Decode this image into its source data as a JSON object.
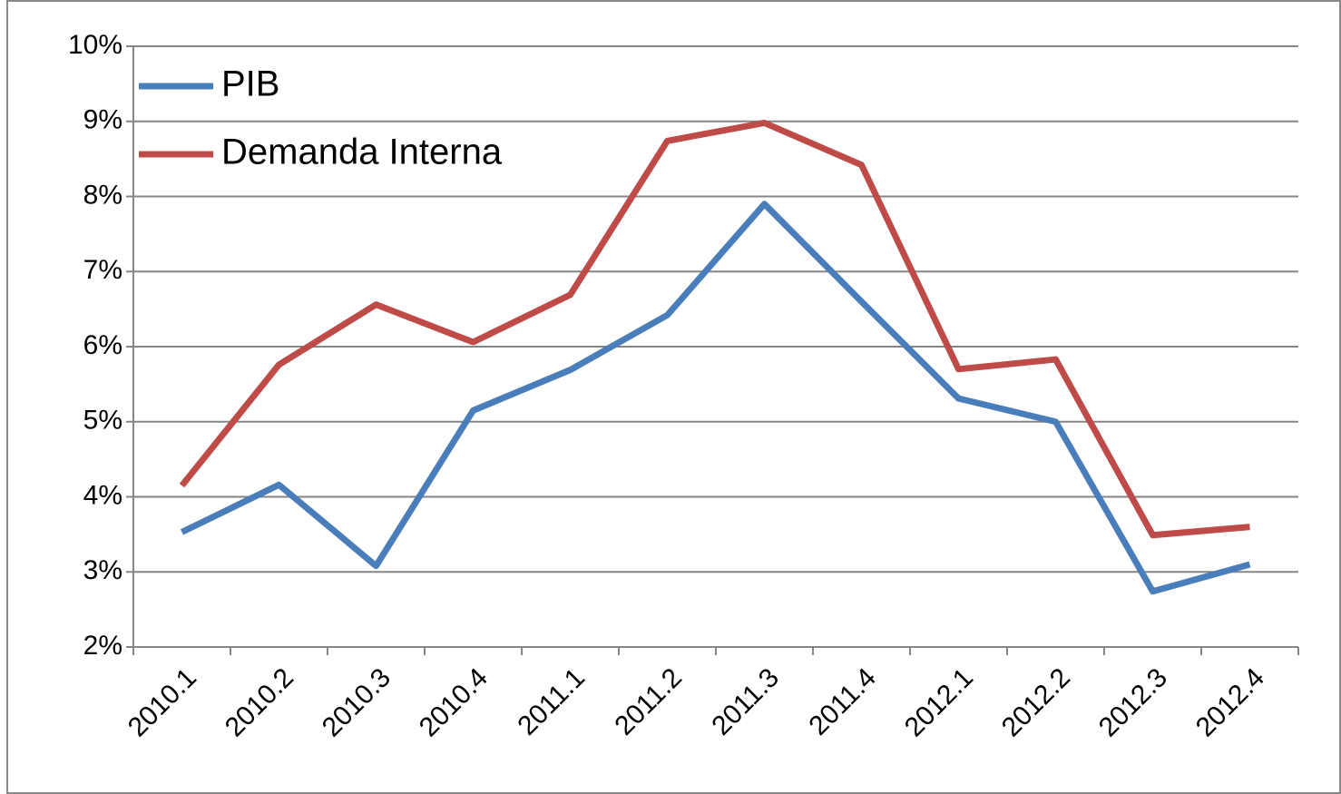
{
  "chart_data": {
    "type": "line",
    "categories": [
      "2010.1",
      "2010.2",
      "2010.3",
      "2010.4",
      "2011.1",
      "2011.2",
      "2011.3",
      "2011.4",
      "2012.1",
      "2012.2",
      "2012.3",
      "2012.4"
    ],
    "series": [
      {
        "name": "PIB",
        "color": "#4a7ebb",
        "values": [
          3.53,
          4.16,
          3.08,
          5.15,
          5.69,
          6.42,
          7.9,
          6.6,
          5.31,
          5.0,
          2.74,
          3.1
        ]
      },
      {
        "name": "Demanda Interna",
        "color": "#be4b48",
        "values": [
          4.15,
          5.76,
          6.56,
          6.06,
          6.69,
          8.74,
          8.98,
          8.42,
          5.7,
          5.83,
          3.49,
          3.6
        ]
      }
    ],
    "ylim": [
      2,
      10
    ],
    "yticks": [
      {
        "value": 2,
        "label": "2%"
      },
      {
        "value": 3,
        "label": "3%"
      },
      {
        "value": 4,
        "label": "4%"
      },
      {
        "value": 5,
        "label": "5%"
      },
      {
        "value": 6,
        "label": "6%"
      },
      {
        "value": 7,
        "label": "7%"
      },
      {
        "value": 8,
        "label": "8%"
      },
      {
        "value": 9,
        "label": "9%"
      },
      {
        "value": 10,
        "label": "10%"
      }
    ],
    "grid": true,
    "legend": "upper-left"
  }
}
